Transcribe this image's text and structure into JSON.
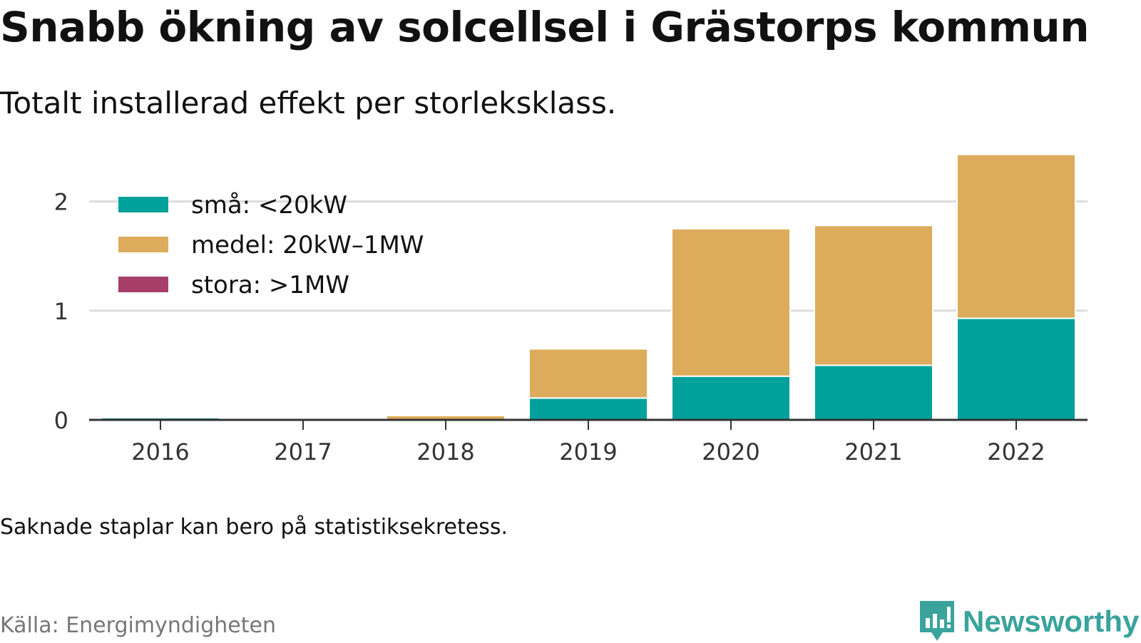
{
  "title": "Snabb ökning av solcellsel i Grästorps kommun",
  "subtitle": "Totalt installerad effekt per storleksklass.",
  "note": "Saknade staplar kan bero på statistiksekretess.",
  "source": "Källa: Energimyndigheten",
  "brand": {
    "name": "Newsworthy",
    "icon": "newsworthy-logo-icon",
    "color": "#3aa39c"
  },
  "chart_data": {
    "type": "bar",
    "stacked": true,
    "categories": [
      "2016",
      "2017",
      "2018",
      "2019",
      "2020",
      "2021",
      "2022"
    ],
    "series": [
      {
        "name": "små: <20kW",
        "color": "#00a19a",
        "values": [
          0.02,
          0.0,
          0.0,
          0.2,
          0.4,
          0.5,
          0.93
        ]
      },
      {
        "name": "medel: 20kW–1MW",
        "color": "#dcac5c",
        "values": [
          0.0,
          0.0,
          0.04,
          0.45,
          1.35,
          1.28,
          1.5
        ]
      },
      {
        "name": "stora: >1MW",
        "color": "#a63e6a",
        "values": [
          0,
          0,
          0,
          0,
          0,
          0,
          0
        ]
      }
    ],
    "ylim": [
      0,
      2.5
    ],
    "yticks": [
      0,
      1,
      2
    ],
    "grid": true,
    "legend_position": "top-left",
    "xlabel": "",
    "ylabel": ""
  }
}
